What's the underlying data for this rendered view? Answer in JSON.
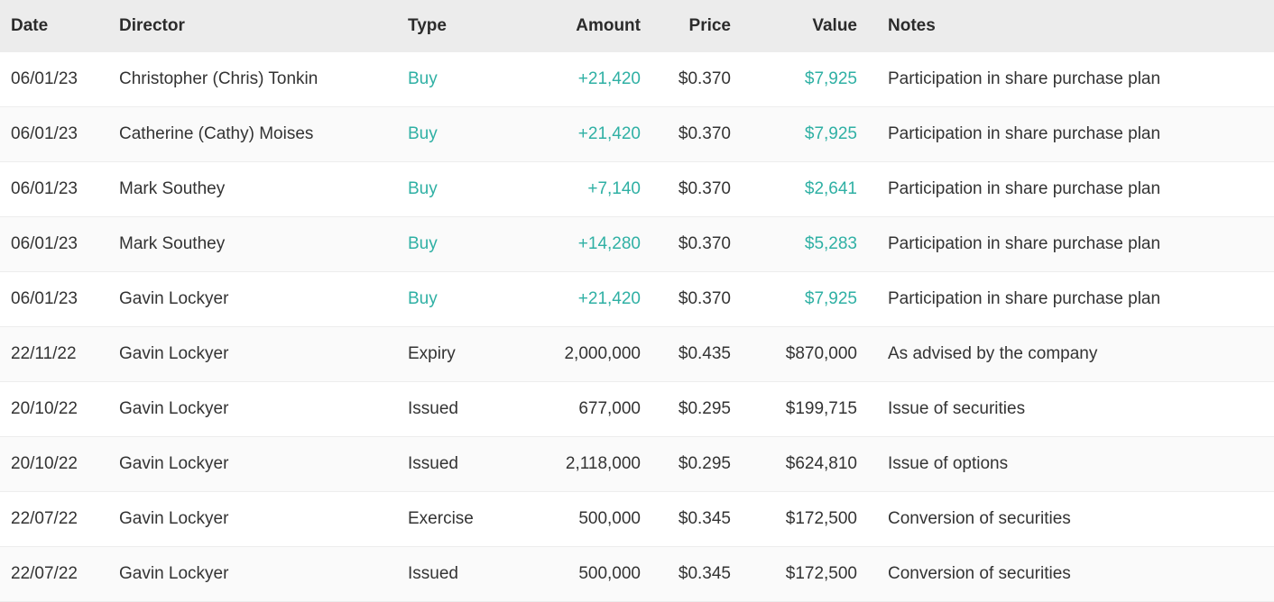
{
  "colors": {
    "header_bg": "#ececec",
    "row_alt_bg": "#fafafa",
    "border": "#ededed",
    "text": "#333333",
    "heading_text": "#2b2b2b",
    "buy": "#2fb0a4"
  },
  "table": {
    "columns": [
      {
        "key": "date",
        "label": "Date",
        "align": "left"
      },
      {
        "key": "director",
        "label": "Director",
        "align": "left"
      },
      {
        "key": "type",
        "label": "Type",
        "align": "left"
      },
      {
        "key": "amount",
        "label": "Amount",
        "align": "right"
      },
      {
        "key": "price",
        "label": "Price",
        "align": "right"
      },
      {
        "key": "value",
        "label": "Value",
        "align": "right"
      },
      {
        "key": "notes",
        "label": "Notes",
        "align": "left"
      }
    ],
    "rows": [
      {
        "date": "06/01/23",
        "director": "Christopher (Chris) Tonkin",
        "type": "Buy",
        "type_style": "buy",
        "amount": "+21,420",
        "amount_style": "buy",
        "price": "$0.370",
        "value": "$7,925",
        "value_style": "buy",
        "notes": "Participation in share purchase plan"
      },
      {
        "date": "06/01/23",
        "director": "Catherine (Cathy) Moises",
        "type": "Buy",
        "type_style": "buy",
        "amount": "+21,420",
        "amount_style": "buy",
        "price": "$0.370",
        "value": "$7,925",
        "value_style": "buy",
        "notes": "Participation in share purchase plan"
      },
      {
        "date": "06/01/23",
        "director": "Mark Southey",
        "type": "Buy",
        "type_style": "buy",
        "amount": "+7,140",
        "amount_style": "buy",
        "price": "$0.370",
        "value": "$2,641",
        "value_style": "buy",
        "notes": "Participation in share purchase plan"
      },
      {
        "date": "06/01/23",
        "director": "Mark Southey",
        "type": "Buy",
        "type_style": "buy",
        "amount": "+14,280",
        "amount_style": "buy",
        "price": "$0.370",
        "value": "$5,283",
        "value_style": "buy",
        "notes": "Participation in share purchase plan"
      },
      {
        "date": "06/01/23",
        "director": "Gavin Lockyer",
        "type": "Buy",
        "type_style": "buy",
        "amount": "+21,420",
        "amount_style": "buy",
        "price": "$0.370",
        "value": "$7,925",
        "value_style": "buy",
        "notes": "Participation in share purchase plan"
      },
      {
        "date": "22/11/22",
        "director": "Gavin Lockyer",
        "type": "Expiry",
        "type_style": "",
        "amount": "2,000,000",
        "amount_style": "",
        "price": "$0.435",
        "value": "$870,000",
        "value_style": "",
        "notes": "As advised by the company"
      },
      {
        "date": "20/10/22",
        "director": "Gavin Lockyer",
        "type": "Issued",
        "type_style": "",
        "amount": "677,000",
        "amount_style": "",
        "price": "$0.295",
        "value": "$199,715",
        "value_style": "",
        "notes": "Issue of securities"
      },
      {
        "date": "20/10/22",
        "director": "Gavin Lockyer",
        "type": "Issued",
        "type_style": "",
        "amount": "2,118,000",
        "amount_style": "",
        "price": "$0.295",
        "value": "$624,810",
        "value_style": "",
        "notes": "Issue of options"
      },
      {
        "date": "22/07/22",
        "director": "Gavin Lockyer",
        "type": "Exercise",
        "type_style": "",
        "amount": "500,000",
        "amount_style": "",
        "price": "$0.345",
        "value": "$172,500",
        "value_style": "",
        "notes": "Conversion of securities"
      },
      {
        "date": "22/07/22",
        "director": "Gavin Lockyer",
        "type": "Issued",
        "type_style": "",
        "amount": "500,000",
        "amount_style": "",
        "price": "$0.345",
        "value": "$172,500",
        "value_style": "",
        "notes": "Conversion of securities"
      }
    ]
  }
}
